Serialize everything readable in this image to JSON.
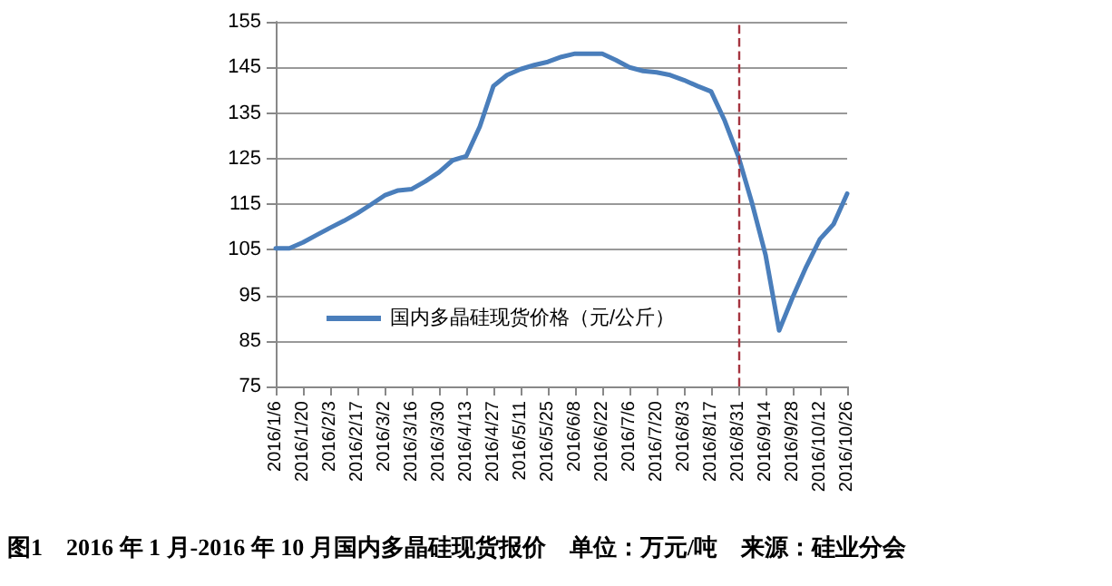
{
  "chart_data": {
    "type": "line",
    "categories": [
      "2016/1/6",
      null,
      "2016/1/20",
      null,
      "2016/2/3",
      null,
      "2016/2/17",
      null,
      "2016/3/2",
      null,
      "2016/3/16",
      null,
      "2016/3/30",
      null,
      "2016/4/13",
      null,
      "2016/4/27",
      null,
      "2016/5/11",
      null,
      "2016/5/25",
      null,
      "2016/6/8",
      null,
      "2016/6/22",
      null,
      "2016/7/6",
      null,
      "2016/7/20",
      null,
      "2016/8/3",
      null,
      "2016/8/17",
      null,
      "2016/8/31",
      null,
      "2016/9/14",
      null,
      "2016/9/28",
      null,
      "2016/10/12",
      null,
      "2016/10/26"
    ],
    "series": [
      {
        "name": "国内多晶硅现货价格（元/公斤）",
        "color": "#4a7ebb",
        "values": [
          105.3,
          105.3,
          106.6,
          108.2,
          109.8,
          111.3,
          113,
          114.9,
          116.9,
          118,
          118.3,
          120,
          122,
          124.6,
          125.5,
          132,
          140.9,
          143.3,
          144.6,
          145.5,
          146.2,
          147.3,
          148,
          148,
          148,
          146.6,
          145,
          144.2,
          143.9,
          143.3,
          142.2,
          140.9,
          139.7,
          133.3,
          125.5,
          115.3,
          103.9,
          87.3,
          94.6,
          101.3,
          107.3,
          110.6,
          117.3
        ]
      }
    ],
    "ylim": [
      75,
      155
    ],
    "yticks": [
      75,
      85,
      95,
      105,
      115,
      125,
      135,
      145,
      155
    ],
    "grid": "y",
    "legend": "left",
    "marker": "none",
    "line_style": "solid",
    "ref_lines": [
      {
        "axis": "x",
        "value": "2016/8/31",
        "color": "#a5343f",
        "line_style": "dashed"
      }
    ],
    "annotations": [
      "图1　2016 年 1 月-2016 年 10 月国内多晶硅现货报价　单位：万元/吨　来源：硅业分会"
    ]
  }
}
